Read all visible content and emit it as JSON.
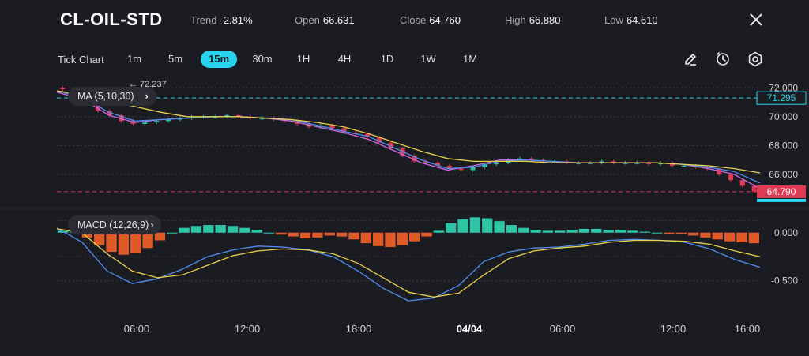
{
  "header": {
    "symbol": "CL-OIL-STD",
    "trend_label": "Trend",
    "trend_value": "-2.81%",
    "open_label": "Open",
    "open_value": "66.631",
    "close_label": "Close",
    "close_value": "64.760",
    "high_label": "High",
    "high_value": "66.880",
    "low_label": "Low",
    "low_value": "64.610"
  },
  "toolbar": {
    "tick_chart": "Tick Chart",
    "timeframes": [
      "1m",
      "5m",
      "15m",
      "30m",
      "1H",
      "4H",
      "1D",
      "1W",
      "1M"
    ],
    "active_timeframe": "15m",
    "tools": [
      "pencil-icon",
      "clock-icon",
      "settings-icon"
    ]
  },
  "colors": {
    "background": "#1b1b22",
    "accent": "#27d3ee",
    "up": "#2ec4a6",
    "down": "#e03a52",
    "ma5": "#c96be0",
    "ma10": "#4f8ff0",
    "ma30": "#e8d24a",
    "macd_pos": "#2ec4a6",
    "macd_neg": "#e05a28"
  },
  "chart_data": [
    {
      "type": "line",
      "indicator": "MA (5,10,30)",
      "y_ticks": [
        "72.000",
        "70.000",
        "68.000",
        "66.000"
      ],
      "ylim": [
        63.8,
        72.4
      ],
      "x_ticks": [
        "06:00",
        "12:00",
        "18:00",
        "04/04",
        "06:00",
        "12:00",
        "16:00"
      ],
      "high_marker": "72.237",
      "reference_price": "71.295",
      "last_price": "64.790",
      "series": [
        {
          "name": "MA5",
          "values": [
            71.7,
            71.2,
            70.1,
            69.6,
            69.8,
            69.9,
            70.0,
            70.0,
            69.9,
            69.7,
            69.3,
            68.9,
            68.4,
            67.6,
            66.8,
            66.3,
            66.6,
            67.0,
            67.0,
            66.9,
            66.8,
            66.8,
            66.8,
            66.8,
            66.7,
            66.4,
            66.0,
            65.0
          ]
        },
        {
          "name": "MA10",
          "values": [
            71.8,
            71.3,
            70.3,
            69.7,
            69.8,
            69.9,
            70.0,
            70.0,
            69.9,
            69.8,
            69.4,
            69.0,
            68.6,
            67.8,
            67.0,
            66.4,
            66.5,
            66.9,
            67.0,
            66.9,
            66.8,
            66.8,
            66.8,
            66.8,
            66.7,
            66.5,
            66.2,
            65.4
          ]
        },
        {
          "name": "MA30",
          "values": [
            71.8,
            71.5,
            71.1,
            70.7,
            70.3,
            70.0,
            70.0,
            70.0,
            69.9,
            69.8,
            69.6,
            69.3,
            68.8,
            68.2,
            67.6,
            67.1,
            66.9,
            66.9,
            66.9,
            66.8,
            66.8,
            66.8,
            66.8,
            66.8,
            66.7,
            66.6,
            66.4,
            66.1
          ]
        }
      ],
      "candles": [
        71.9,
        71.6,
        71.1,
        70.4,
        70.1,
        69.7,
        69.5,
        69.6,
        69.7,
        69.8,
        69.9,
        70.0,
        70.0,
        70.0,
        70.1,
        70.0,
        69.9,
        69.9,
        69.8,
        69.7,
        69.5,
        69.3,
        69.4,
        69.2,
        68.9,
        68.8,
        68.6,
        68.2,
        67.8,
        67.3,
        66.9,
        66.8,
        66.6,
        66.4,
        66.3,
        66.5,
        66.7,
        66.8,
        67.0,
        67.1,
        67.0,
        66.9,
        66.9,
        66.8,
        66.8,
        66.8,
        66.9,
        66.8,
        66.8,
        66.8,
        66.7,
        66.8,
        66.6,
        66.6,
        66.5,
        66.4,
        66.0,
        65.6,
        65.2,
        64.8
      ]
    },
    {
      "type": "bar",
      "indicator": "MACD (12,26,9)",
      "y_ticks": [
        "0.000",
        "-0.500"
      ],
      "ylim": [
        -0.75,
        0.22
      ],
      "histogram": [
        0.02,
        0.01,
        -0.05,
        -0.13,
        -0.2,
        -0.23,
        -0.21,
        -0.16,
        -0.08,
        0.0,
        0.05,
        0.07,
        0.08,
        0.08,
        0.07,
        0.05,
        0.03,
        0.0,
        -0.02,
        -0.04,
        -0.06,
        -0.05,
        -0.03,
        -0.04,
        -0.07,
        -0.11,
        -0.14,
        -0.15,
        -0.13,
        -0.09,
        -0.04,
        0.02,
        0.1,
        0.14,
        0.16,
        0.15,
        0.12,
        0.08,
        0.05,
        0.03,
        0.02,
        0.02,
        0.03,
        0.04,
        0.04,
        0.03,
        0.03,
        0.02,
        0.01,
        0.0,
        -0.01,
        -0.01,
        -0.03,
        -0.05,
        -0.07,
        -0.09,
        -0.1,
        -0.11
      ],
      "series": [
        {
          "name": "MACD",
          "values": [
            0.05,
            -0.1,
            -0.4,
            -0.53,
            -0.48,
            -0.38,
            -0.25,
            -0.18,
            -0.14,
            -0.15,
            -0.18,
            -0.25,
            -0.4,
            -0.58,
            -0.71,
            -0.68,
            -0.55,
            -0.3,
            -0.2,
            -0.16,
            -0.15,
            -0.12,
            -0.08,
            -0.07,
            -0.08,
            -0.1,
            -0.17,
            -0.28,
            -0.36
          ]
        },
        {
          "name": "Signal",
          "values": [
            0.04,
            0.0,
            -0.22,
            -0.4,
            -0.47,
            -0.44,
            -0.34,
            -0.24,
            -0.19,
            -0.17,
            -0.18,
            -0.22,
            -0.32,
            -0.47,
            -0.62,
            -0.67,
            -0.63,
            -0.44,
            -0.27,
            -0.19,
            -0.16,
            -0.14,
            -0.1,
            -0.08,
            -0.08,
            -0.09,
            -0.12,
            -0.19,
            -0.25
          ]
        }
      ]
    }
  ]
}
